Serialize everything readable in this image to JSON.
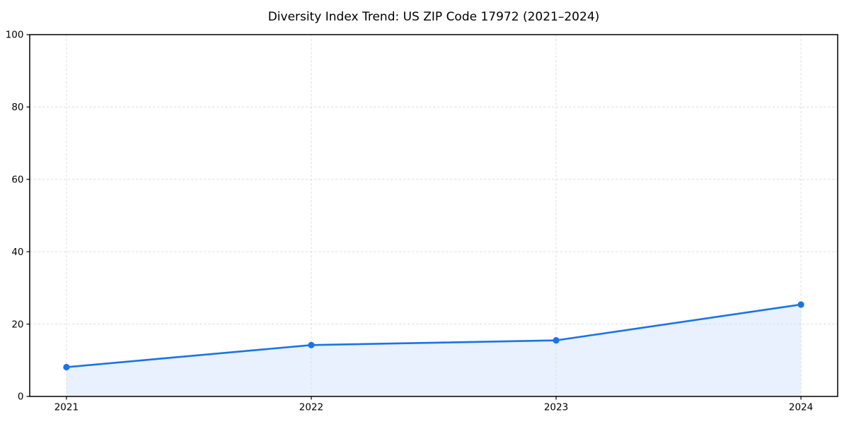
{
  "chart_data": {
    "type": "line",
    "title": "Diversity Index Trend: US ZIP Code 17972 (2021–2024)",
    "x": [
      "2021",
      "2022",
      "2023",
      "2024"
    ],
    "values": [
      8.1,
      14.2,
      15.5,
      25.4
    ],
    "xlabel": "",
    "ylabel": "",
    "ylim": [
      0,
      100
    ],
    "yticks": [
      0,
      20,
      40,
      60,
      80,
      100
    ],
    "grid": true,
    "grid_style": "dashed",
    "legend": false,
    "area_fill": true,
    "colors": {
      "line": "#1a73e8",
      "marker": "#1a73e8",
      "fill": "#e8f1fd",
      "grid": "#dfdfdf",
      "axis": "#000000",
      "text": "#000000"
    }
  }
}
